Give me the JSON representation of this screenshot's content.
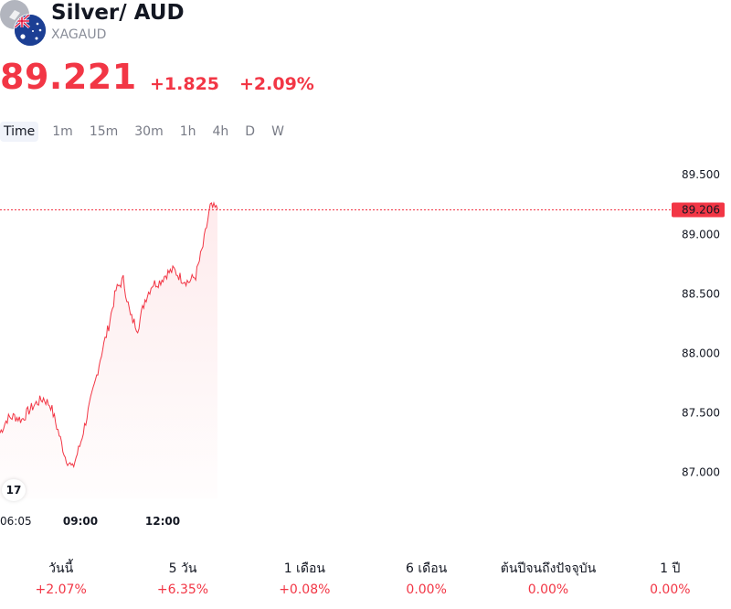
{
  "header": {
    "title": "Silver/ AUD",
    "ticker": "XAGAUD",
    "price": "89.221",
    "change_abs": "+1.825",
    "change_pct": "+2.09%",
    "accent_color": "#f23645"
  },
  "intervals": {
    "items": [
      "Time",
      "1m",
      "15m",
      "30m",
      "1h",
      "4h",
      "D",
      "W"
    ],
    "active": "Time"
  },
  "chart_data": {
    "type": "area",
    "y_ticks": [
      "89.500",
      "89.000",
      "88.500",
      "88.000",
      "87.500",
      "87.000"
    ],
    "ylim": [
      86.78,
      89.74
    ],
    "x_ticks": [
      {
        "label": "06:05",
        "bold": false
      },
      {
        "label": "09:00",
        "bold": true
      },
      {
        "label": "12:00",
        "bold": true
      }
    ],
    "last_price_label": "89.206",
    "last_price": 89.206,
    "line_color": "#f23645",
    "x": [
      "06:05",
      "06:20",
      "06:35",
      "06:50",
      "07:05",
      "07:20",
      "07:35",
      "07:50",
      "08:05",
      "08:20",
      "08:35",
      "08:50",
      "09:00",
      "09:15",
      "09:30",
      "09:45",
      "10:00",
      "10:15",
      "10:30",
      "10:45",
      "11:00",
      "11:15",
      "11:30",
      "11:45",
      "12:00",
      "12:15",
      "12:30",
      "12:45",
      "13:00",
      "13:10",
      "13:20"
    ],
    "values": [
      87.33,
      87.45,
      87.47,
      87.44,
      87.52,
      87.58,
      87.62,
      87.56,
      87.35,
      87.13,
      87.03,
      87.22,
      87.47,
      87.72,
      88.0,
      88.23,
      88.53,
      88.62,
      88.31,
      88.21,
      88.45,
      88.58,
      88.6,
      88.67,
      88.7,
      88.63,
      88.6,
      88.65,
      88.9,
      89.23,
      89.21
    ]
  },
  "performance": [
    {
      "label": "วันนี้",
      "value": "+2.07%"
    },
    {
      "label": "5 วัน",
      "value": "+6.35%"
    },
    {
      "label": "1 เดือน",
      "value": "+0.08%"
    },
    {
      "label": "6 เดือน",
      "value": "0.00%"
    },
    {
      "label": "ต้นปีจนถึงปัจจุบัน",
      "value": "0.00%"
    },
    {
      "label": "1 ปี",
      "value": "0.00%"
    }
  ]
}
